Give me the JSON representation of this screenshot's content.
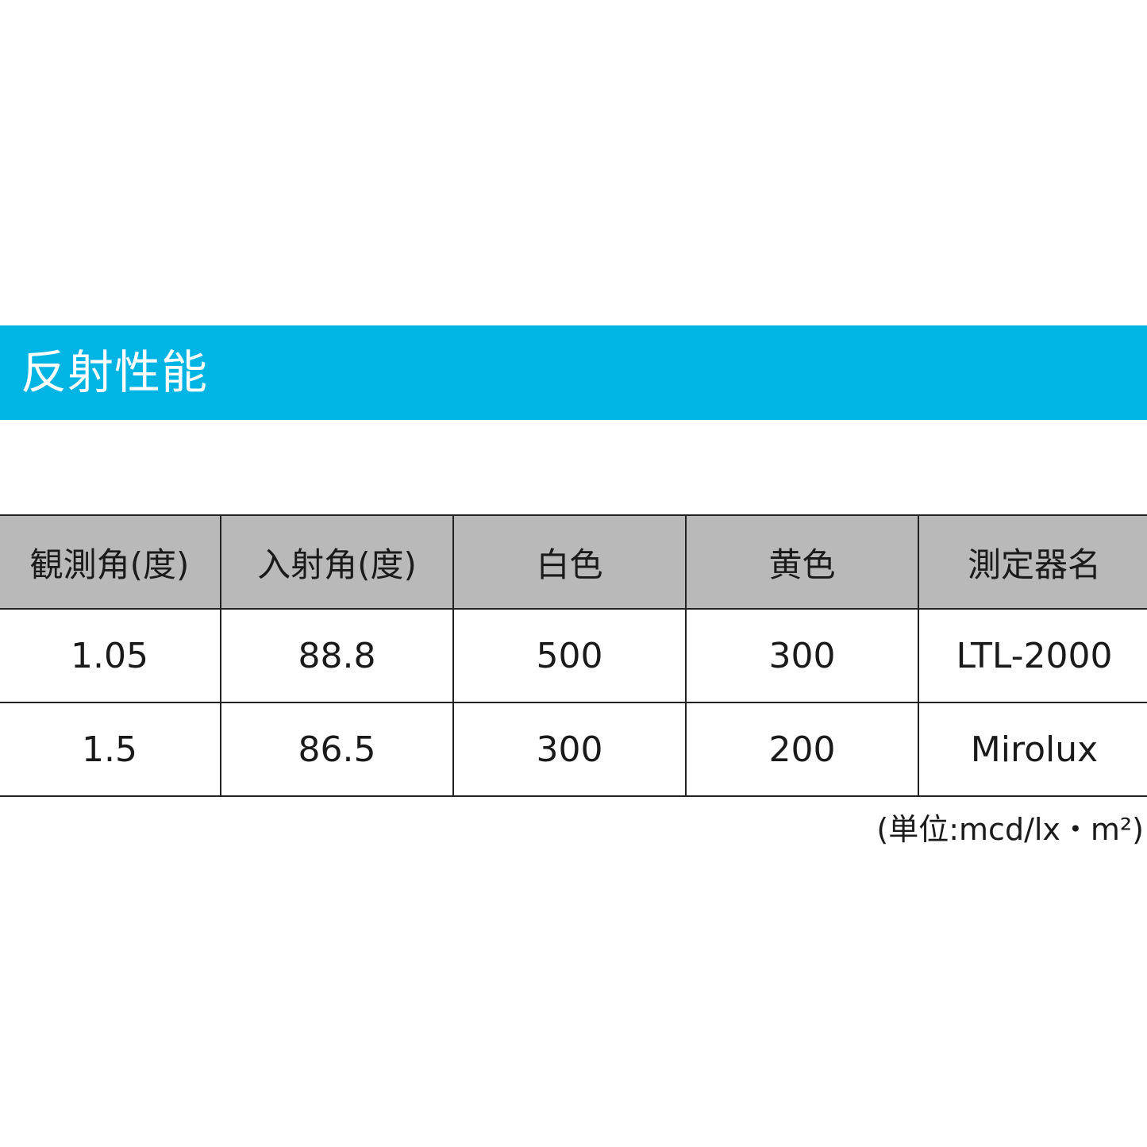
{
  "banner": {
    "title": "反射性能",
    "color": "#00b4e4"
  },
  "table": {
    "headers": [
      "観測角(度)",
      "入射角(度)",
      "白色",
      "黄色",
      "測定器名"
    ],
    "rows": [
      [
        "1.05",
        "88.8",
        "500",
        "300",
        "LTL-2000"
      ],
      [
        "1.5",
        "86.5",
        "300",
        "200",
        "Mirolux"
      ]
    ],
    "header_bg": "#b9b9b9"
  },
  "unit_note": "(単位:mcd/lx・m²)"
}
